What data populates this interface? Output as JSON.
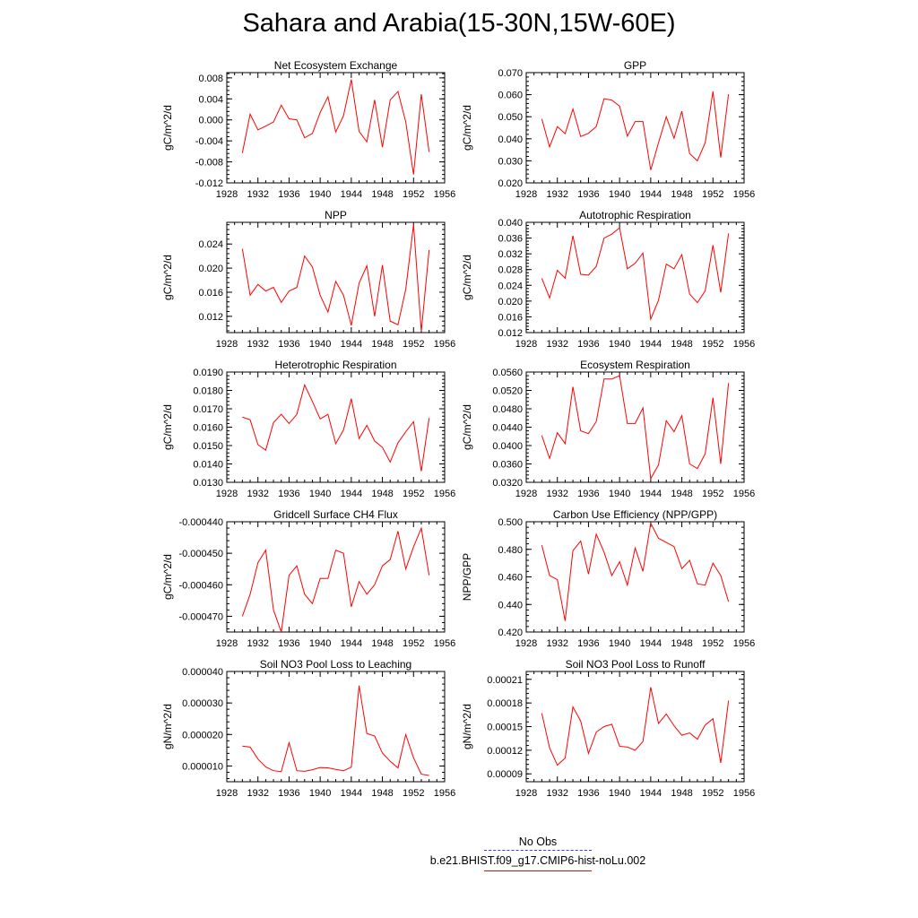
{
  "figure": {
    "title": "Sahara and Arabia(15-30N,15W-60E)"
  },
  "colors": {
    "model_line": "#ff0000",
    "obs_line": "#3b3bd6",
    "axis": "#000000"
  },
  "legend": {
    "obs_label": "No Obs",
    "model_label": "b.e21.BHIST.f09_g17.CMIP6-hist-noLu.002"
  },
  "chart_data": [
    {
      "type": "line",
      "title": "Net Ecosystem Exchange",
      "ylabel": "gC/m^2/d",
      "xlim": [
        1928,
        1956
      ],
      "xticks": [
        "1928",
        "1932",
        "1936",
        "1940",
        "1944",
        "1948",
        "1952",
        "1956"
      ],
      "ylim": [
        -0.012,
        0.009
      ],
      "yticks": [
        "0.008",
        "0.004",
        "0.000",
        "-0.004",
        "-0.008",
        "-0.012"
      ],
      "x": [
        1930,
        1931,
        1932,
        1933,
        1934,
        1935,
        1936,
        1937,
        1938,
        1939,
        1940,
        1941,
        1942,
        1943,
        1944,
        1945,
        1946,
        1947,
        1948,
        1949,
        1950,
        1951,
        1952,
        1953,
        1954
      ],
      "series": [
        {
          "values": [
            -0.0063,
            0.0011,
            -0.0019,
            -0.0012,
            -0.0004,
            0.0028,
            0.0002,
            0.0,
            -0.0034,
            -0.0026,
            0.0014,
            0.0044,
            -0.0023,
            0.0008,
            0.0077,
            -0.0022,
            -0.0042,
            0.0038,
            -0.0052,
            0.0038,
            0.0054,
            -0.0004,
            -0.0104,
            0.0049,
            -0.0061
          ]
        }
      ]
    },
    {
      "type": "line",
      "title": "GPP",
      "ylabel": "gC/m^2/d",
      "xlim": [
        1928,
        1956
      ],
      "xticks": [
        "1928",
        "1932",
        "1936",
        "1940",
        "1944",
        "1948",
        "1952",
        "1956"
      ],
      "ylim": [
        0.02,
        0.07
      ],
      "yticks": [
        "0.070",
        "0.060",
        "0.050",
        "0.040",
        "0.030",
        "0.020"
      ],
      "x": [
        1930,
        1931,
        1932,
        1933,
        1934,
        1935,
        1936,
        1937,
        1938,
        1939,
        1940,
        1941,
        1942,
        1943,
        1944,
        1945,
        1946,
        1947,
        1948,
        1949,
        1950,
        1951,
        1952,
        1953,
        1954
      ],
      "series": [
        {
          "values": [
            0.049,
            0.0363,
            0.0455,
            0.0423,
            0.0535,
            0.041,
            0.0425,
            0.0455,
            0.0582,
            0.0575,
            0.0548,
            0.0412,
            0.0478,
            0.0478,
            0.0258,
            0.0382,
            0.05,
            0.0402,
            0.0525,
            0.0333,
            0.03,
            0.0382,
            0.0615,
            0.0315,
            0.0602
          ]
        }
      ]
    },
    {
      "type": "line",
      "title": "NPP",
      "ylabel": "gC/m^2/d",
      "xlim": [
        1928,
        1956
      ],
      "xticks": [
        "1928",
        "1932",
        "1936",
        "1940",
        "1944",
        "1948",
        "1952",
        "1956"
      ],
      "ylim": [
        0.0093,
        0.0276
      ],
      "yticks": [
        "0.024",
        "0.020",
        "0.016",
        "0.012"
      ],
      "x": [
        1930,
        1931,
        1932,
        1933,
        1934,
        1935,
        1936,
        1937,
        1938,
        1939,
        1940,
        1941,
        1942,
        1943,
        1944,
        1945,
        1946,
        1947,
        1948,
        1949,
        1950,
        1951,
        1952,
        1953,
        1954
      ],
      "series": [
        {
          "values": [
            0.0232,
            0.0155,
            0.0173,
            0.0162,
            0.0168,
            0.0143,
            0.0162,
            0.0168,
            0.022,
            0.0202,
            0.0155,
            0.0127,
            0.0178,
            0.0155,
            0.0105,
            0.0175,
            0.0204,
            0.012,
            0.0205,
            0.0112,
            0.0106,
            0.0165,
            0.0272,
            0.0095,
            0.023
          ]
        }
      ]
    },
    {
      "type": "line",
      "title": "Autotrophic Respiration",
      "ylabel": "gC/m^2/d",
      "xlim": [
        1928,
        1956
      ],
      "xticks": [
        "1928",
        "1932",
        "1936",
        "1940",
        "1944",
        "1948",
        "1952",
        "1956"
      ],
      "ylim": [
        0.012,
        0.04
      ],
      "yticks": [
        "0.040",
        "0.036",
        "0.032",
        "0.028",
        "0.024",
        "0.020",
        "0.016",
        "0.012"
      ],
      "x": [
        1930,
        1931,
        1932,
        1933,
        1934,
        1935,
        1936,
        1937,
        1938,
        1939,
        1940,
        1941,
        1942,
        1943,
        1944,
        1945,
        1946,
        1947,
        1948,
        1949,
        1950,
        1951,
        1952,
        1953,
        1954
      ],
      "series": [
        {
          "values": [
            0.0258,
            0.0208,
            0.0278,
            0.0258,
            0.0366,
            0.0268,
            0.0266,
            0.0288,
            0.036,
            0.037,
            0.0386,
            0.0282,
            0.0296,
            0.0322,
            0.0154,
            0.0202,
            0.0294,
            0.0282,
            0.0318,
            0.0218,
            0.0196,
            0.0226,
            0.0342,
            0.0222,
            0.0372
          ]
        }
      ]
    },
    {
      "type": "line",
      "title": "Heterotrophic Respiration",
      "ylabel": "gC/m^2/d",
      "xlim": [
        1928,
        1956
      ],
      "xticks": [
        "1928",
        "1932",
        "1936",
        "1940",
        "1944",
        "1948",
        "1952",
        "1956"
      ],
      "ylim": [
        0.013,
        0.019
      ],
      "yticks": [
        "0.0190",
        "0.0180",
        "0.0170",
        "0.0160",
        "0.0150",
        "0.0140",
        "0.0130"
      ],
      "x": [
        1930,
        1931,
        1932,
        1933,
        1934,
        1935,
        1936,
        1937,
        1938,
        1939,
        1940,
        1941,
        1942,
        1943,
        1944,
        1945,
        1946,
        1947,
        1948,
        1949,
        1950,
        1951,
        1952,
        1953,
        1954
      ],
      "series": [
        {
          "values": [
            0.01655,
            0.0164,
            0.01505,
            0.01475,
            0.01625,
            0.0167,
            0.0162,
            0.0167,
            0.0183,
            0.0174,
            0.01645,
            0.0167,
            0.0151,
            0.01585,
            0.01755,
            0.01538,
            0.0161,
            0.01525,
            0.0149,
            0.0141,
            0.01515,
            0.01575,
            0.0163,
            0.0136,
            0.0165
          ]
        }
      ]
    },
    {
      "type": "line",
      "title": "Ecosystem Respiration",
      "ylabel": "gC/m^2/d",
      "xlim": [
        1928,
        1956
      ],
      "xticks": [
        "1928",
        "1932",
        "1936",
        "1940",
        "1944",
        "1948",
        "1952",
        "1956"
      ],
      "ylim": [
        0.032,
        0.056
      ],
      "yticks": [
        "0.0560",
        "0.0520",
        "0.0480",
        "0.0440",
        "0.0400",
        "0.0360",
        "0.0320"
      ],
      "x": [
        1930,
        1931,
        1932,
        1933,
        1934,
        1935,
        1936,
        1937,
        1938,
        1939,
        1940,
        1941,
        1942,
        1943,
        1944,
        1945,
        1946,
        1947,
        1948,
        1949,
        1950,
        1951,
        1952,
        1953,
        1954
      ],
      "series": [
        {
          "values": [
            0.0422,
            0.0372,
            0.0428,
            0.0404,
            0.0528,
            0.0432,
            0.0426,
            0.0452,
            0.0545,
            0.0545,
            0.0552,
            0.0448,
            0.0448,
            0.0482,
            0.0328,
            0.0358,
            0.0454,
            0.043,
            0.0465,
            0.036,
            0.035,
            0.0382,
            0.0504,
            0.036,
            0.0536
          ]
        }
      ]
    },
    {
      "type": "line",
      "title": "Gridcell Surface CH4 Flux",
      "ylabel": "gC/m^2/d",
      "xlim": [
        1928,
        1956
      ],
      "xticks": [
        "1928",
        "1932",
        "1936",
        "1940",
        "1944",
        "1948",
        "1952",
        "1956"
      ],
      "ylim": [
        -0.000475,
        -0.00044
      ],
      "yticks": [
        "-0.000440",
        "-0.000450",
        "-0.000460",
        "-0.000470"
      ],
      "x": [
        1930,
        1931,
        1932,
        1933,
        1934,
        1935,
        1936,
        1937,
        1938,
        1939,
        1940,
        1941,
        1942,
        1943,
        1944,
        1945,
        1946,
        1947,
        1948,
        1949,
        1950,
        1951,
        1952,
        1953,
        1954
      ],
      "series": [
        {
          "values": [
            -0.00047,
            -0.000463,
            -0.000453,
            -0.000449,
            -0.000468,
            -0.000475,
            -0.000457,
            -0.000454,
            -0.000463,
            -0.000466,
            -0.000458,
            -0.000458,
            -0.000449,
            -0.00045,
            -0.000467,
            -0.000459,
            -0.000463,
            -0.00046,
            -0.000454,
            -0.000452,
            -0.000443,
            -0.000455,
            -0.000448,
            -0.000442,
            -0.000457
          ]
        }
      ]
    },
    {
      "type": "line",
      "title": "Carbon Use Efficiency (NPP/GPP)",
      "ylabel": "NPP/GPP",
      "xlim": [
        1928,
        1956
      ],
      "xticks": [
        "1928",
        "1932",
        "1936",
        "1940",
        "1944",
        "1948",
        "1952",
        "1956"
      ],
      "ylim": [
        0.42,
        0.5
      ],
      "yticks": [
        "0.500",
        "0.480",
        "0.460",
        "0.440",
        "0.420"
      ],
      "x": [
        1930,
        1931,
        1932,
        1933,
        1934,
        1935,
        1936,
        1937,
        1938,
        1939,
        1940,
        1941,
        1942,
        1943,
        1944,
        1945,
        1946,
        1947,
        1948,
        1949,
        1950,
        1951,
        1952,
        1953,
        1954
      ],
      "series": [
        {
          "values": [
            0.483,
            0.461,
            0.458,
            0.428,
            0.479,
            0.486,
            0.462,
            0.491,
            0.478,
            0.461,
            0.471,
            0.454,
            0.481,
            0.464,
            0.499,
            0.488,
            0.485,
            0.482,
            0.466,
            0.472,
            0.455,
            0.454,
            0.47,
            0.461,
            0.442
          ]
        }
      ]
    },
    {
      "type": "line",
      "title": "Soil NO3 Pool Loss to Leaching",
      "ylabel": "gN/m^2/d",
      "xlim": [
        1928,
        1956
      ],
      "xticks": [
        "1928",
        "1932",
        "1936",
        "1940",
        "1944",
        "1948",
        "1952",
        "1956"
      ],
      "ylim": [
        5e-06,
        4e-05
      ],
      "yticks": [
        "0.000040",
        "0.000030",
        "0.000020",
        "0.000010"
      ],
      "x": [
        1930,
        1931,
        1932,
        1933,
        1934,
        1935,
        1936,
        1937,
        1938,
        1939,
        1940,
        1941,
        1942,
        1943,
        1944,
        1945,
        1946,
        1947,
        1948,
        1949,
        1950,
        1951,
        1952,
        1953,
        1954
      ],
      "series": [
        {
          "values": [
            1.63e-05,
            1.6e-05,
            1.22e-05,
            9.7e-06,
            8.5e-06,
            8.2e-06,
            1.74e-05,
            8.5e-06,
            8.3e-06,
            8.8e-06,
            9.5e-06,
            9.4e-06,
            8.9e-06,
            8.5e-06,
            9.6e-06,
            3.55e-05,
            2.03e-05,
            1.95e-05,
            1.41e-05,
            1.15e-05,
            9.4e-06,
            2e-05,
            1.26e-05,
            7.4e-06,
            7e-06
          ]
        }
      ]
    },
    {
      "type": "line",
      "title": "Soil NO3 Pool Loss to Runoff",
      "ylabel": "gN/m^2/d",
      "xlim": [
        1928,
        1956
      ],
      "xticks": [
        "1928",
        "1932",
        "1936",
        "1940",
        "1944",
        "1948",
        "1952",
        "1956"
      ],
      "ylim": [
        8e-05,
        0.00022
      ],
      "yticks": [
        "0.00021",
        "0.00018",
        "0.00015",
        "0.00012",
        "0.00009"
      ],
      "x": [
        1930,
        1931,
        1932,
        1933,
        1934,
        1935,
        1936,
        1937,
        1938,
        1939,
        1940,
        1941,
        1942,
        1943,
        1944,
        1945,
        1946,
        1947,
        1948,
        1949,
        1950,
        1951,
        1952,
        1953,
        1954
      ],
      "series": [
        {
          "values": [
            0.000167,
            0.000123,
            0.000101,
            0.00011,
            0.000175,
            0.000157,
            0.000116,
            0.000143,
            0.00015,
            0.000153,
            0.000125,
            0.000124,
            0.00012,
            0.000131,
            0.0002,
            0.000154,
            0.000166,
            0.000151,
            0.000139,
            0.000142,
            0.000134,
            0.000152,
            0.00016,
            0.000104,
            0.000183
          ]
        }
      ]
    }
  ]
}
